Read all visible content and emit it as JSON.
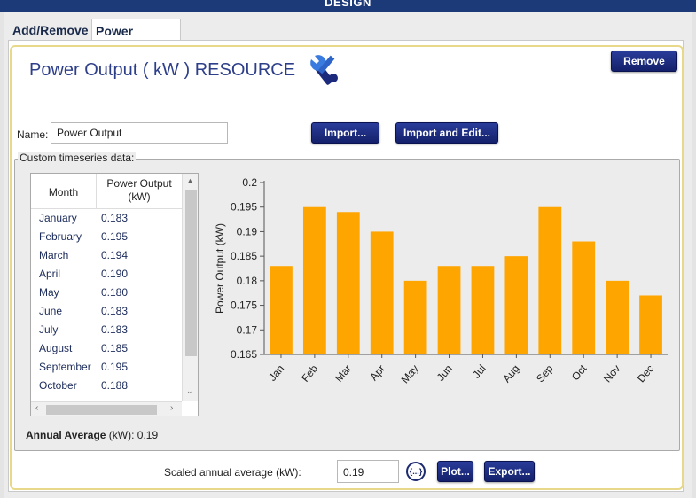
{
  "window": {
    "title": "DESIGN"
  },
  "tabs": [
    {
      "label": "Add/Remove",
      "active": false
    },
    {
      "label": "Power Output",
      "active": true
    }
  ],
  "header": {
    "title": "Power Output ( kW ) RESOURCE",
    "icon": "wrench-icon",
    "remove_label": "Remove"
  },
  "form": {
    "name_label": "Name:",
    "name_value": "Power Output",
    "import_label": "Import...",
    "import_edit_label": "Import and Edit..."
  },
  "timeseries": {
    "group_label": "Custom timeseries data:",
    "columns": [
      "Month",
      "Power Output (kW)"
    ],
    "rows": [
      {
        "month": "January",
        "value": "0.183"
      },
      {
        "month": "February",
        "value": "0.195"
      },
      {
        "month": "March",
        "value": "0.194"
      },
      {
        "month": "April",
        "value": "0.190"
      },
      {
        "month": "May",
        "value": "0.180"
      },
      {
        "month": "June",
        "value": "0.183"
      },
      {
        "month": "July",
        "value": "0.183"
      },
      {
        "month": "August",
        "value": "0.185"
      },
      {
        "month": "September",
        "value": "0.195"
      },
      {
        "month": "October",
        "value": "0.188"
      }
    ]
  },
  "chart_data": {
    "type": "bar",
    "categories": [
      "Jan",
      "Feb",
      "Mar",
      "Apr",
      "May",
      "Jun",
      "Jul",
      "Aug",
      "Sep",
      "Oct",
      "Nov",
      "Dec"
    ],
    "values": [
      0.183,
      0.195,
      0.194,
      0.19,
      0.18,
      0.183,
      0.183,
      0.185,
      0.195,
      0.188,
      0.18,
      0.177
    ],
    "title": "",
    "xlabel": "",
    "ylabel": "Power Output (kW)",
    "ylim": [
      0.165,
      0.2
    ],
    "yticks": [
      "0.165",
      "0.17",
      "0.175",
      "0.18",
      "0.185",
      "0.19",
      "0.195",
      "0.2"
    ],
    "bar_color": "#FFA500",
    "grid": false
  },
  "summary": {
    "annual_label": "Annual Average",
    "annual_unit": " (kW): ",
    "annual_value": "0.19"
  },
  "footer": {
    "scaled_label": "Scaled annual average (kW):",
    "scaled_value": "0.19",
    "fx_label": "{...}",
    "plot_label": "Plot...",
    "export_label": "Export..."
  },
  "colors": {
    "titlebar": "#1c3a78",
    "title_text": "#2e3f8a",
    "button": "#1a2a80",
    "accent_frame": "#e8d88a"
  }
}
